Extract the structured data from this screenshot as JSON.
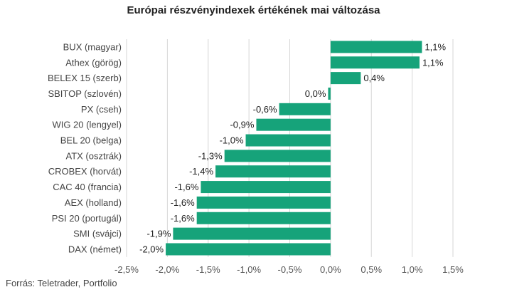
{
  "title": "Európai részvényindexek értékének mai változása",
  "source": "Forrás: Teletrader, Portfolio",
  "colors": {
    "bar": "#16a37a",
    "grid": "#d6d6d6"
  },
  "chart_data": {
    "type": "bar",
    "orientation": "horizontal",
    "title": "Európai részvényindexek értékének mai változása",
    "categories": [
      "BUX (magyar)",
      "Athex (görög)",
      "BELEX 15 (szerb)",
      "SBITOP (szlovén)",
      "PX (cseh)",
      "WIG 20 (lengyel)",
      "BEL 20 (belga)",
      "ATX (osztrák)",
      "CROBEX (horvát)",
      "CAC 40 (francia)",
      "AEX (holland)",
      "PSI 20 (portugál)",
      "SMI (svájci)",
      "DAX (német)"
    ],
    "values": [
      1.12,
      1.09,
      0.37,
      -0.03,
      -0.63,
      -0.91,
      -1.04,
      -1.3,
      -1.41,
      -1.59,
      -1.64,
      -1.64,
      -1.93,
      -2.02
    ],
    "value_labels": [
      "1,1%",
      "1,1%",
      "0,4%",
      "0,0%",
      "-0,6%",
      "-0,9%",
      "-1,0%",
      "-1,3%",
      "-1,4%",
      "-1,6%",
      "-1,6%",
      "-1,6%",
      "-1,9%",
      "-2,0%"
    ],
    "xlim": [
      -2.5,
      1.5
    ],
    "xticks": [
      -2.5,
      -2.0,
      -1.5,
      -1.0,
      -0.5,
      0.0,
      0.5,
      1.0,
      1.5
    ],
    "xtick_labels": [
      "-2,5%",
      "-2,0%",
      "-1,5%",
      "-1,0%",
      "-0,5%",
      "0,0%",
      "0,5%",
      "1,0%",
      "1,5%"
    ],
    "grid": "vertical"
  }
}
